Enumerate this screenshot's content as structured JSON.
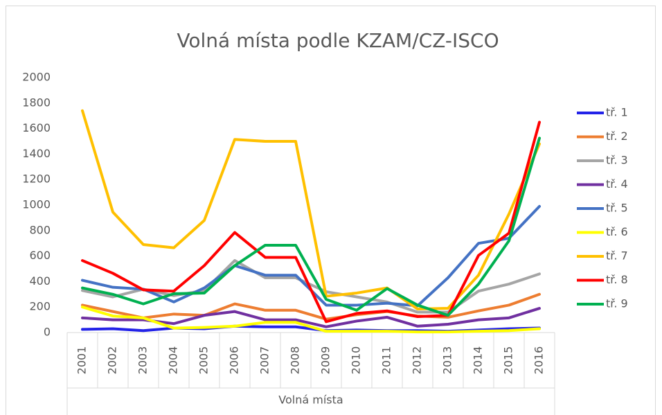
{
  "chart_data": {
    "type": "line",
    "title": "Volná místa podle KZAM/CZ-ISCO",
    "x_label": "Volná místa",
    "categories": [
      "2001",
      "2002",
      "2003",
      "2004",
      "2005",
      "2006",
      "2007",
      "2008",
      "2009",
      "2010",
      "2011",
      "2012",
      "2013",
      "2014",
      "2015",
      "2016"
    ],
    "ylim": [
      0,
      2000
    ],
    "yticks": [
      0,
      200,
      400,
      600,
      800,
      1000,
      1200,
      1400,
      1600,
      1800,
      2000
    ],
    "grid": false,
    "legend": "right",
    "series": [
      {
        "name": "tř. 1",
        "color": "#2323e8",
        "values": [
          25,
          30,
          15,
          35,
          30,
          50,
          45,
          45,
          15,
          20,
          15,
          15,
          10,
          20,
          30,
          35
        ]
      },
      {
        "name": "tř. 2",
        "color": "#ed7d31",
        "values": [
          215,
          165,
          115,
          145,
          135,
          225,
          175,
          175,
          105,
          140,
          165,
          130,
          120,
          170,
          215,
          300
        ]
      },
      {
        "name": "tř. 3",
        "color": "#a5a5a5",
        "values": [
          330,
          280,
          340,
          290,
          330,
          565,
          430,
          430,
          320,
          280,
          240,
          160,
          160,
          325,
          380,
          460
        ]
      },
      {
        "name": "tř. 4",
        "color": "#7030a0",
        "values": [
          115,
          100,
          100,
          70,
          135,
          165,
          100,
          100,
          45,
          90,
          120,
          50,
          65,
          100,
          115,
          190
        ]
      },
      {
        "name": "tř. 5",
        "color": "#4472c4",
        "values": [
          410,
          355,
          340,
          240,
          350,
          525,
          450,
          450,
          215,
          215,
          230,
          210,
          430,
          700,
          740,
          990
        ]
      },
      {
        "name": "tř. 6",
        "color": "#ffff00",
        "values": [
          200,
          130,
          115,
          35,
          40,
          50,
          80,
          80,
          10,
          10,
          10,
          5,
          5,
          10,
          15,
          30
        ]
      },
      {
        "name": "tř. 7",
        "color": "#ffc000",
        "values": [
          1740,
          945,
          690,
          665,
          880,
          1515,
          1500,
          1500,
          285,
          310,
          350,
          185,
          190,
          450,
          930,
          1480
        ]
      },
      {
        "name": "tř. 8",
        "color": "#ff0000",
        "values": [
          565,
          465,
          335,
          325,
          525,
          785,
          590,
          590,
          85,
          150,
          170,
          125,
          135,
          605,
          780,
          1650
        ]
      },
      {
        "name": "tř. 9",
        "color": "#00b050",
        "values": [
          350,
          300,
          225,
          305,
          310,
          525,
          685,
          685,
          260,
          175,
          345,
          215,
          135,
          380,
          720,
          1525
        ]
      }
    ]
  }
}
